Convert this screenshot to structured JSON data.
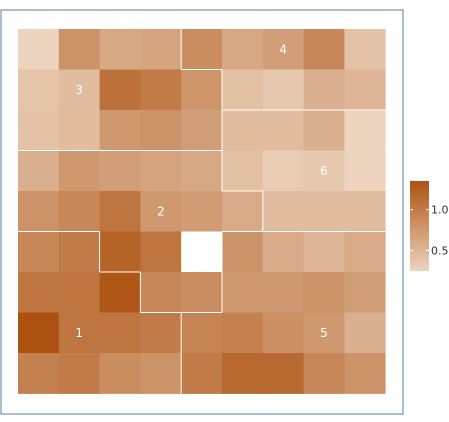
{
  "chart_data": {
    "type": "heatmap",
    "title": "",
    "xlabel": "",
    "ylabel": "",
    "grid_rows": 9,
    "grid_cols": 9,
    "colormap": {
      "low": "#ecd4bf",
      "high": "#ad5110"
    },
    "value_range": [
      0.25,
      1.35
    ],
    "missing_color": "#ffffff",
    "border_color": "#5a7fa5",
    "region_border_color": "#ffffff",
    "values": [
      [
        0.25,
        0.8,
        0.62,
        0.65,
        0.85,
        0.62,
        0.7,
        0.9,
        0.4
      ],
      [
        0.38,
        0.45,
        1.08,
        1.0,
        0.78,
        0.42,
        0.35,
        0.55,
        0.5
      ],
      [
        0.4,
        0.45,
        0.75,
        0.8,
        0.7,
        0.45,
        0.45,
        0.55,
        0.25
      ],
      [
        0.55,
        0.75,
        0.7,
        0.65,
        0.62,
        0.42,
        0.32,
        0.35,
        0.25
      ],
      [
        0.8,
        0.9,
        1.05,
        0.75,
        0.72,
        0.6,
        0.45,
        0.45,
        0.45
      ],
      [
        0.9,
        1.0,
        1.2,
        1.05,
        null,
        0.8,
        0.6,
        0.5,
        0.6
      ],
      [
        1.05,
        1.05,
        1.3,
        0.9,
        0.85,
        0.75,
        0.75,
        0.8,
        0.7
      ],
      [
        1.35,
        1.05,
        1.05,
        1.0,
        0.92,
        0.95,
        0.82,
        0.75,
        0.55
      ],
      [
        0.95,
        1.0,
        0.85,
        0.8,
        1.0,
        1.15,
        1.15,
        0.9,
        0.8
      ]
    ],
    "regions": [
      {
        "label": "1",
        "cells": [
          [
            5,
            0
          ],
          [
            5,
            1
          ],
          [
            6,
            0
          ],
          [
            6,
            1
          ],
          [
            6,
            2
          ],
          [
            7,
            0
          ],
          [
            7,
            1
          ],
          [
            7,
            2
          ],
          [
            7,
            3
          ],
          [
            8,
            0
          ],
          [
            8,
            1
          ],
          [
            8,
            2
          ],
          [
            8,
            3
          ]
        ],
        "label_cell": [
          7.5,
          1.5
        ]
      },
      {
        "label": "2",
        "cells": [
          [
            3,
            0
          ],
          [
            3,
            1
          ],
          [
            3,
            2
          ],
          [
            3,
            3
          ],
          [
            3,
            4
          ],
          [
            4,
            0
          ],
          [
            4,
            1
          ],
          [
            4,
            2
          ],
          [
            4,
            3
          ],
          [
            4,
            4
          ],
          [
            4,
            5
          ],
          [
            5,
            2
          ],
          [
            5,
            3
          ],
          [
            5,
            4
          ],
          [
            6,
            3
          ],
          [
            6,
            4
          ]
        ],
        "label_cell": [
          4.5,
          3.5
        ]
      },
      {
        "label": "3",
        "cells": [
          [
            0,
            0
          ],
          [
            0,
            1
          ],
          [
            0,
            2
          ],
          [
            0,
            3
          ],
          [
            1,
            0
          ],
          [
            1,
            1
          ],
          [
            1,
            2
          ],
          [
            1,
            3
          ],
          [
            1,
            4
          ],
          [
            2,
            0
          ],
          [
            2,
            1
          ],
          [
            2,
            2
          ],
          [
            2,
            3
          ],
          [
            2,
            4
          ]
        ],
        "label_cell": [
          1.5,
          1.5
        ]
      },
      {
        "label": "4",
        "cells": [
          [
            0,
            4
          ],
          [
            0,
            5
          ],
          [
            0,
            6
          ],
          [
            0,
            7
          ],
          [
            0,
            8
          ],
          [
            1,
            5
          ],
          [
            1,
            6
          ],
          [
            1,
            7
          ],
          [
            1,
            8
          ]
        ],
        "label_cell": [
          0.5,
          6.5
        ]
      },
      {
        "label": "5",
        "cells": [
          [
            5,
            5
          ],
          [
            5,
            6
          ],
          [
            5,
            7
          ],
          [
            5,
            8
          ],
          [
            6,
            5
          ],
          [
            6,
            6
          ],
          [
            6,
            7
          ],
          [
            6,
            8
          ],
          [
            7,
            4
          ],
          [
            7,
            5
          ],
          [
            7,
            6
          ],
          [
            7,
            7
          ],
          [
            7,
            8
          ],
          [
            8,
            4
          ],
          [
            8,
            5
          ],
          [
            8,
            6
          ],
          [
            8,
            7
          ],
          [
            8,
            8
          ]
        ],
        "label_cell": [
          7.5,
          7.5
        ]
      },
      {
        "label": "6",
        "cells": [
          [
            2,
            5
          ],
          [
            2,
            6
          ],
          [
            2,
            7
          ],
          [
            2,
            8
          ],
          [
            3,
            5
          ],
          [
            3,
            6
          ],
          [
            3,
            7
          ],
          [
            3,
            8
          ],
          [
            4,
            6
          ],
          [
            4,
            7
          ],
          [
            4,
            8
          ]
        ],
        "label_cell": [
          3.5,
          7.5
        ]
      }
    ],
    "legend": {
      "placement": "right",
      "ticks": [
        {
          "value": 1.0,
          "label": "1.0"
        },
        {
          "value": 0.5,
          "label": "0.5"
        }
      ]
    }
  }
}
